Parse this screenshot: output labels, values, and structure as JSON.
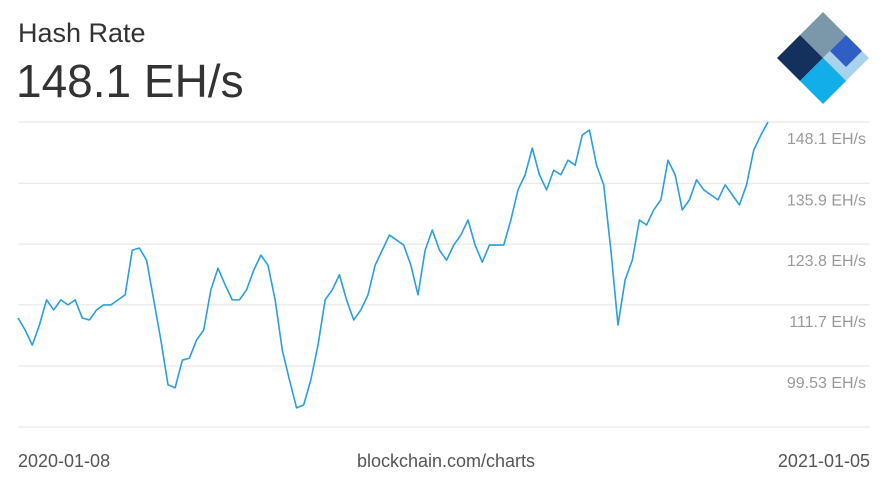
{
  "chart_data": {
    "type": "line",
    "title": "Hash Rate",
    "subtitle": "148.1 EH/s",
    "source": "blockchain.com/charts",
    "x_range_labels": [
      "2020-01-08",
      "2021-01-05"
    ],
    "color": "#2a9fd8",
    "grid": true,
    "ylim": [
      87.4,
      148.1
    ],
    "yticks": [
      {
        "value": 148.1,
        "label": "148.1 EH/s"
      },
      {
        "value": 135.9,
        "label": "135.9 EH/s"
      },
      {
        "value": 123.8,
        "label": "123.8 EH/s"
      },
      {
        "value": 111.7,
        "label": "111.7 EH/s"
      },
      {
        "value": 99.53,
        "label": "99.53 EH/s"
      }
    ],
    "values": [
      109.1,
      106.7,
      103.7,
      107.7,
      112.7,
      110.7,
      112.7,
      111.7,
      112.7,
      109.1,
      108.7,
      110.7,
      111.7,
      111.7,
      112.7,
      113.7,
      122.6,
      123.0,
      120.6,
      112.7,
      104.7,
      95.8,
      95.2,
      100.7,
      101.1,
      104.7,
      106.7,
      114.7,
      119.0,
      115.7,
      112.7,
      112.7,
      114.7,
      118.6,
      121.6,
      119.6,
      112.7,
      102.7,
      96.8,
      91.2,
      91.8,
      96.8,
      103.7,
      112.7,
      114.7,
      117.7,
      112.7,
      108.7,
      110.7,
      113.7,
      119.6,
      122.6,
      125.6,
      124.6,
      123.6,
      119.6,
      113.7,
      122.6,
      126.6,
      122.6,
      120.6,
      123.6,
      125.6,
      128.6,
      123.6,
      120.2,
      123.6,
      123.6,
      123.6,
      128.6,
      134.6,
      137.6,
      142.9,
      137.6,
      134.6,
      138.5,
      137.6,
      140.5,
      139.5,
      145.5,
      146.5,
      139.5,
      135.6,
      122.6,
      107.7,
      116.7,
      120.6,
      128.6,
      127.6,
      130.6,
      132.6,
      140.5,
      137.6,
      130.6,
      132.6,
      136.6,
      134.6,
      133.6,
      132.6,
      135.6,
      133.6,
      131.6,
      135.6,
      142.5,
      145.5,
      148.1
    ]
  }
}
